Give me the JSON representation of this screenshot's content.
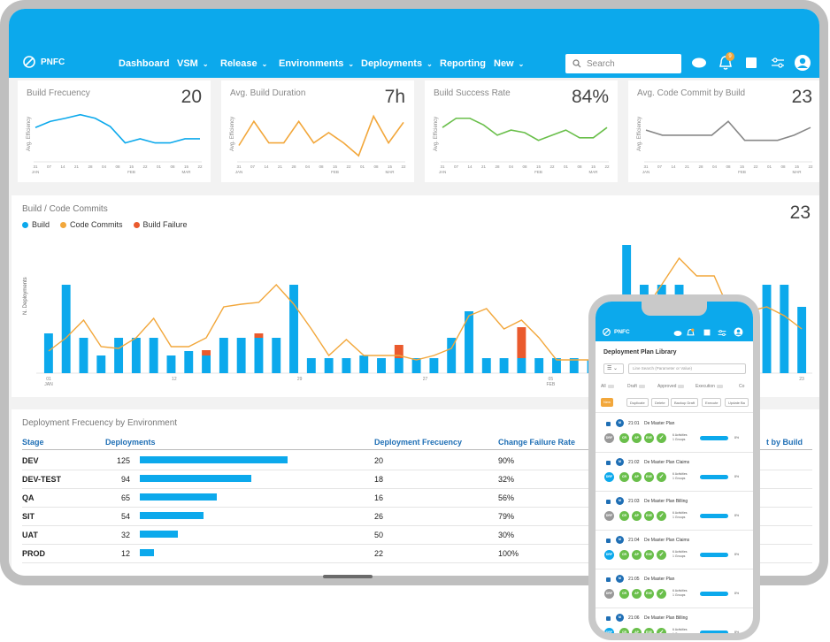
{
  "header": {
    "brand": "PNFC",
    "nav": [
      "Dashboard",
      "VSM",
      "Release",
      "Environments",
      "Deployments",
      "Reporting",
      "New"
    ],
    "nav_dropdown": [
      false,
      true,
      true,
      true,
      true,
      false,
      true
    ],
    "search_placeholder": "Search",
    "notification_count": "9",
    "colors": {
      "primary": "#0ca9ec"
    }
  },
  "kpis": [
    {
      "label": "Build Frecuency",
      "value": "20",
      "ylabel": "Avg. Efficiency",
      "color": "#0ca9ec",
      "ticks": [
        "31\nJAN",
        "07",
        "14",
        "21",
        "28",
        "04",
        "08",
        "15\nFEB",
        "22",
        "01",
        "08",
        "15\nMAR",
        "22"
      ],
      "points": [
        0.6,
        0.72,
        0.78,
        0.85,
        0.78,
        0.62,
        0.3,
        0.38,
        0.3,
        0.3,
        0.38,
        0.38
      ]
    },
    {
      "label": "Avg. Build Duration",
      "value": "7h",
      "ylabel": "Avg. Efficiency",
      "color": "#f2a73b",
      "ticks": [
        "31\nJAN",
        "07",
        "14",
        "21",
        "28",
        "04",
        "08",
        "15\nFEB",
        "22",
        "01",
        "08",
        "15\nMAR",
        "22"
      ],
      "points": [
        0.25,
        0.72,
        0.3,
        0.3,
        0.72,
        0.3,
        0.5,
        0.3,
        0.05,
        0.82,
        0.3,
        0.7
      ]
    },
    {
      "label": "Build Success Rate",
      "value": "84%",
      "ylabel": "Avg. Efficiency",
      "color": "#6abf4b",
      "ticks": [
        "31\nJAN",
        "07",
        "14",
        "21",
        "28",
        "04",
        "08",
        "15\nFEB",
        "22",
        "01",
        "08",
        "15\nMAR",
        "22"
      ],
      "points": [
        0.6,
        0.78,
        0.78,
        0.65,
        0.45,
        0.55,
        0.5,
        0.35,
        0.45,
        0.55,
        0.4,
        0.4,
        0.6
      ]
    },
    {
      "label": "Avg. Code Commit by Build",
      "value": "23",
      "ylabel": "Avg. Efficiency",
      "color": "#888888",
      "ticks": [
        "31\nJAN",
        "07",
        "14",
        "21",
        "28",
        "04",
        "08",
        "15\nFEB",
        "22",
        "01",
        "08",
        "15\nMAR",
        "22"
      ],
      "points": [
        0.55,
        0.45,
        0.45,
        0.45,
        0.45,
        0.72,
        0.35,
        0.35,
        0.35,
        0.45,
        0.6
      ]
    }
  ],
  "commits": {
    "title": "Build / Code Commits",
    "value": "23",
    "legend": [
      "Build",
      "Code Commits",
      "Build Failure"
    ],
    "ylabel": "N. Deployments",
    "ticks": [
      "01\nJAN",
      "12",
      "29",
      "27",
      "05\nFEB",
      "15",
      "23"
    ]
  },
  "chart_data": {
    "type": "bar",
    "title": "Build / Code Commits",
    "ylabel": "N. Deployments",
    "series": [
      {
        "name": "Build",
        "values": [
          45,
          100,
          40,
          20,
          40,
          40,
          40,
          20,
          25,
          20,
          40,
          40,
          40,
          40,
          100,
          17,
          17,
          17,
          20,
          17,
          17,
          17,
          17,
          40,
          70,
          17,
          17,
          17,
          17,
          17,
          17,
          15,
          15,
          145,
          100,
          100,
          100,
          20,
          20,
          20,
          80,
          100,
          100,
          75
        ]
      },
      {
        "name": "Build Failure",
        "values": [
          0,
          0,
          0,
          0,
          0,
          0,
          0,
          0,
          0,
          6,
          0,
          0,
          5,
          0,
          0,
          0,
          0,
          0,
          0,
          0,
          15,
          0,
          0,
          0,
          0,
          0,
          0,
          35,
          0,
          0,
          0,
          0,
          0,
          0,
          0,
          0,
          0,
          0,
          0,
          0,
          0,
          0,
          0,
          0
        ]
      },
      {
        "name": "Code Commits",
        "values": [
          25,
          40,
          60,
          30,
          28,
          40,
          62,
          30,
          30,
          40,
          75,
          78,
          80,
          100,
          78,
          50,
          20,
          38,
          20,
          20,
          20,
          15,
          20,
          28,
          65,
          73,
          50,
          60,
          40,
          15,
          15,
          15,
          45,
          30,
          70,
          100,
          130,
          110,
          110,
          65,
          70,
          75,
          65,
          50
        ]
      }
    ]
  },
  "deployments": {
    "title": "Deployment Frecuency by Environment",
    "headers": [
      "Stage",
      "Deployments",
      "Deployment Frecuency",
      "Change Failure Rate",
      "t by Build"
    ],
    "rows": [
      {
        "stage": "DEV",
        "deployments": "125",
        "frequency": "20",
        "failure": "90%",
        "value": 125
      },
      {
        "stage": "DEV-TEST",
        "deployments": "94",
        "frequency": "18",
        "failure": "32%",
        "value": 94
      },
      {
        "stage": "QA",
        "deployments": "65",
        "frequency": "16",
        "failure": "56%",
        "value": 65
      },
      {
        "stage": "SIT",
        "deployments": "54",
        "frequency": "26",
        "failure": "79%",
        "value": 54
      },
      {
        "stage": "UAT",
        "deployments": "32",
        "frequency": "50",
        "failure": "30%",
        "value": 32
      },
      {
        "stage": "PROD",
        "deployments": "12",
        "frequency": "22",
        "failure": "100%",
        "value": 12
      }
    ]
  },
  "phone": {
    "brand": "PNFC",
    "title": "Deployment Plan Library",
    "search_placeholder": "Line Search (Parameter or Value)",
    "filters": [
      "All",
      "Draft",
      "Approved",
      "Execution",
      "Co"
    ],
    "actions": [
      "New",
      "Duplicate",
      "Delete",
      "Backup Draft",
      "Execute",
      "Update Ba"
    ],
    "items": [
      {
        "time": "21:01",
        "name": "De Master Plan",
        "activities": "6 Activities",
        "groups": "1 Groups",
        "percent": "8%"
      },
      {
        "time": "21:02",
        "name": "De Master Plan Claims",
        "activities": "6 Activities",
        "groups": "1 Groups",
        "percent": "8%"
      },
      {
        "time": "21:03",
        "name": "De Master Plan Billing",
        "activities": "6 Activities",
        "groups": "1 Groups",
        "percent": "8%"
      },
      {
        "time": "21:04",
        "name": "De Master Plan Claims",
        "activities": "6 Activities",
        "groups": "1 Groups",
        "percent": "8%"
      },
      {
        "time": "21:05",
        "name": "De Master Plan",
        "activities": "6 Activities",
        "groups": "1 Groups",
        "percent": "8%"
      },
      {
        "time": "21:06",
        "name": "De Master Plan Billing",
        "activities": "6 Activities",
        "groups": "1 Groups",
        "percent": "8%"
      }
    ],
    "chips": [
      "CR",
      "AP",
      "EXE"
    ]
  }
}
